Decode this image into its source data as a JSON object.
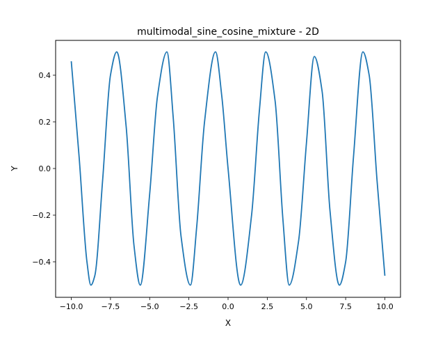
{
  "chart_data": {
    "type": "line",
    "title": "multimodal_sine_cosine_mixture - 2D",
    "xlabel": "X",
    "ylabel": "Y",
    "xlim": [
      -10.0,
      10.0
    ],
    "ylim": [
      -0.5,
      0.5
    ],
    "x_ticks": [
      -10.0,
      -7.5,
      -5.0,
      -2.5,
      0.0,
      2.5,
      5.0,
      7.5,
      10.0
    ],
    "x_tick_labels": [
      "−10.0",
      "−7.5",
      "−5.0",
      "−2.5",
      "0.0",
      "2.5",
      "5.0",
      "7.5",
      "10.0"
    ],
    "y_ticks": [
      -0.4,
      -0.2,
      0.0,
      0.2,
      0.4
    ],
    "y_tick_labels": [
      "−0.4",
      "−0.2",
      "0.0",
      "0.2",
      "0.4"
    ],
    "grid": false,
    "legend": "none",
    "line_color": "#1f77b4",
    "series": [
      {
        "x": [
          -10.0,
          -9.5,
          -9.0,
          -8.75,
          -8.5,
          -8.0,
          -7.5,
          -7.1,
          -6.5,
          -6.0,
          -5.6,
          -5.0,
          -4.5,
          -3.9,
          -3.5,
          -3.0,
          -2.4,
          -2.0,
          -1.5,
          -0.8,
          -0.4,
          0.0,
          0.8,
          1.5,
          2.0,
          2.4,
          3.0,
          3.5,
          3.9,
          4.5,
          5.0,
          5.5,
          6.0,
          6.5,
          7.1,
          7.5,
          8.0,
          8.6,
          9.0,
          9.5,
          10.0
        ],
        "y": [
          0.46,
          0.05,
          -0.4,
          -0.5,
          -0.46,
          -0.05,
          0.4,
          0.5,
          0.18,
          -0.33,
          -0.5,
          -0.11,
          0.31,
          0.5,
          0.22,
          -0.29,
          -0.5,
          -0.25,
          0.2,
          0.5,
          0.31,
          0.0,
          -0.5,
          -0.2,
          0.25,
          0.5,
          0.29,
          -0.22,
          -0.5,
          -0.31,
          0.11,
          0.48,
          0.33,
          -0.18,
          -0.5,
          -0.4,
          0.05,
          0.5,
          0.4,
          -0.05,
          -0.46
        ]
      }
    ]
  }
}
